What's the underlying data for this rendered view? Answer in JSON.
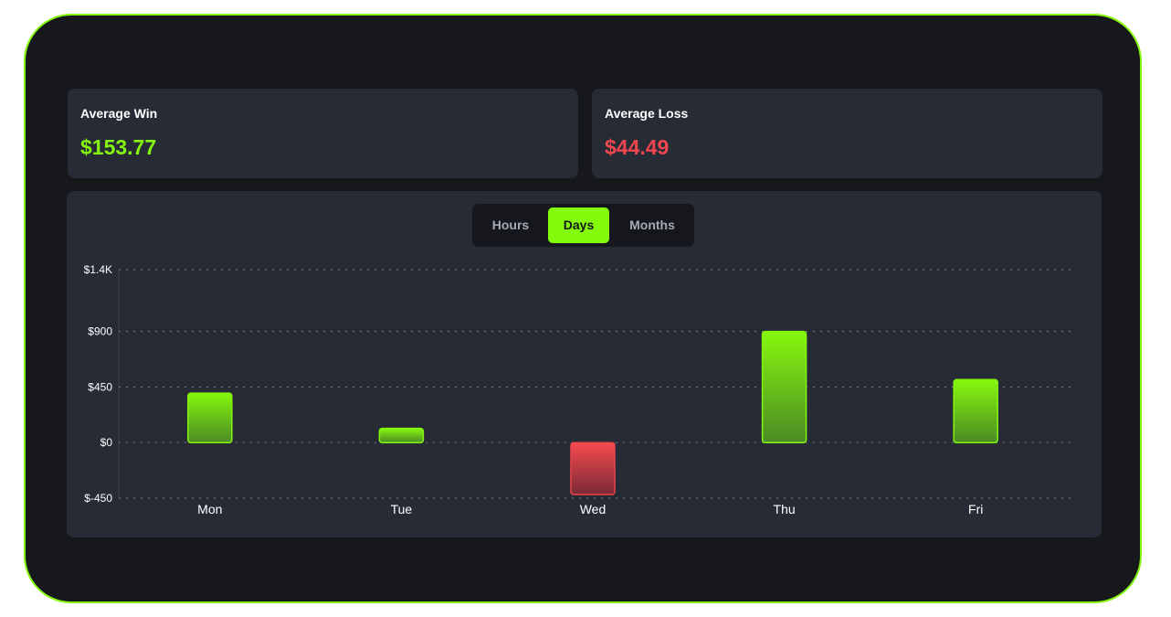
{
  "stats": {
    "win": {
      "label": "Average Win",
      "value": "$153.77"
    },
    "loss": {
      "label": "Average Loss",
      "value": "$44.49"
    }
  },
  "tabs": [
    {
      "label": "Hours",
      "active": false
    },
    {
      "label": "Days",
      "active": true
    },
    {
      "label": "Months",
      "active": false
    }
  ],
  "colors": {
    "accent": "#84f50e",
    "win": "#84f50e",
    "loss": "#f0464e",
    "background": "#16181c",
    "card": "#272b36"
  },
  "chart_data": {
    "type": "bar",
    "title": "",
    "xlabel": "",
    "ylabel": "",
    "categories": [
      "Mon",
      "Tue",
      "Wed",
      "Thu",
      "Fri"
    ],
    "values": [
      400,
      115,
      -420,
      900,
      510
    ],
    "ylim": [
      -450,
      1400
    ],
    "yticks": [
      1400,
      900,
      450,
      0,
      -450
    ],
    "ytick_labels": [
      "$1.4K",
      "$900",
      "$450",
      "$0",
      "$-450"
    ],
    "grid": true
  }
}
